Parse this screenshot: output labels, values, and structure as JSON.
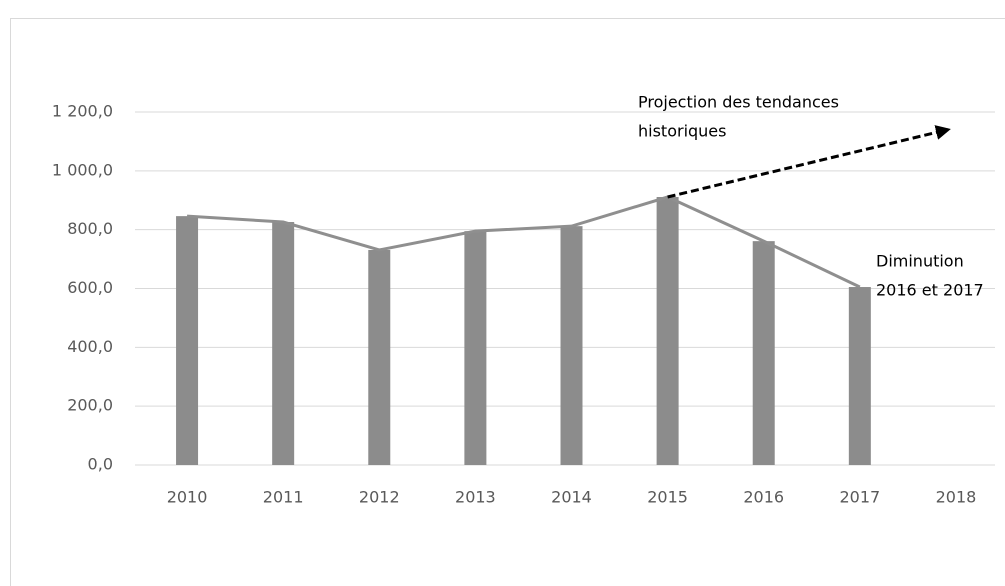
{
  "chart_data": {
    "type": "bar",
    "categories": [
      "2010",
      "2011",
      "2012",
      "2013",
      "2014",
      "2015",
      "2016",
      "2017",
      "2018"
    ],
    "values": [
      846,
      826,
      731,
      795,
      812,
      911,
      761,
      605,
      null
    ],
    "color": "#8c8c8c",
    "line_overlay": true,
    "line_color": "#8f8f8f",
    "ylim": [
      0,
      1200
    ],
    "yticks": [
      {
        "value": 0,
        "label": "0,0"
      },
      {
        "value": 200,
        "label": "200,0"
      },
      {
        "value": 400,
        "label": "400,0"
      },
      {
        "value": 600,
        "label": "600,0"
      },
      {
        "value": 800,
        "label": "800,0"
      },
      {
        "value": 1000,
        "label": "1 000,0"
      },
      {
        "value": 1200,
        "label": "1 200,0"
      }
    ],
    "grid": true,
    "projection": {
      "from_index": 5,
      "to_index": 8,
      "to_value": 1140
    },
    "annotations": [
      [
        "Projection des tendances",
        "historiques"
      ],
      [
        "Diminution",
        "2016 et 2017"
      ]
    ]
  }
}
